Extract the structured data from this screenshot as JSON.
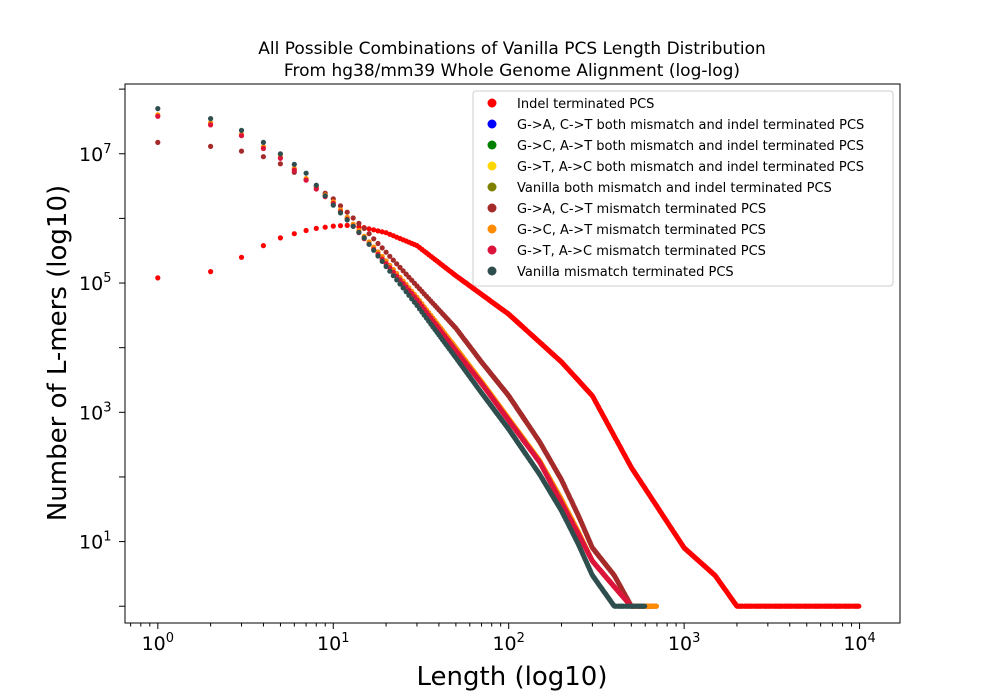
{
  "chart_data": {
    "type": "scatter",
    "title_lines": [
      "All Possible Combinations of Vanilla PCS Length Distribution",
      "From hg38/mm39 Whole Genome Alignment (log-log)"
    ],
    "xlabel": "Length (log10)",
    "ylabel": "Number of L-mers (log10)",
    "x_scale": "log",
    "y_scale": "log",
    "xlim": [
      0.65,
      17000
    ],
    "ylim": [
      0.55,
      120000000
    ],
    "x_ticks": [
      {
        "value": 1,
        "base": "10",
        "exp": "0"
      },
      {
        "value": 10,
        "base": "10",
        "exp": "1"
      },
      {
        "value": 100,
        "base": "10",
        "exp": "2"
      },
      {
        "value": 1000,
        "base": "10",
        "exp": "3"
      },
      {
        "value": 10000,
        "base": "10",
        "exp": "4"
      }
    ],
    "y_ticks": [
      {
        "value": 10,
        "base": "10",
        "exp": "1"
      },
      {
        "value": 1000,
        "base": "10",
        "exp": "3"
      },
      {
        "value": 100000,
        "base": "10",
        "exp": "5"
      },
      {
        "value": 10000000,
        "base": "10",
        "exp": "7"
      }
    ],
    "grid": false,
    "legend_position": "top-right",
    "series": [
      {
        "name": "Indel terminated PCS",
        "color": "#ff0000",
        "points": [
          [
            1,
            120000
          ],
          [
            2,
            150000
          ],
          [
            3,
            250000
          ],
          [
            4,
            380000
          ],
          [
            5,
            500000
          ],
          [
            6,
            580000
          ],
          [
            7,
            650000
          ],
          [
            8,
            700000
          ],
          [
            10,
            760000
          ],
          [
            12,
            780000
          ],
          [
            15,
            720000
          ],
          [
            20,
            600000
          ],
          [
            30,
            380000
          ],
          [
            50,
            130000
          ],
          [
            100,
            33000
          ],
          [
            200,
            6000
          ],
          [
            300,
            1800
          ],
          [
            500,
            140
          ],
          [
            700,
            35
          ],
          [
            1000,
            8
          ],
          [
            1500,
            3
          ],
          [
            2000,
            1
          ],
          [
            3000,
            1
          ],
          [
            5000,
            1
          ],
          [
            7000,
            1
          ],
          [
            10000,
            1
          ]
        ]
      },
      {
        "name": "G->A, C->T both mismatch and indel terminated PCS",
        "color": "#0000ff",
        "points": []
      },
      {
        "name": "G->C, A->T both mismatch and indel terminated PCS",
        "color": "#008000",
        "points": []
      },
      {
        "name": "G->T, A->C both mismatch and indel terminated PCS",
        "color": "#ffd700",
        "points": []
      },
      {
        "name": "Vanilla both mismatch and indel terminated PCS",
        "color": "#808000",
        "points": []
      },
      {
        "name": "G->A, C->T mismatch terminated PCS",
        "color": "#a52a2a",
        "points": [
          [
            1,
            15000000
          ],
          [
            2,
            13000000
          ],
          [
            3,
            11000000
          ],
          [
            4,
            9000000
          ],
          [
            5,
            7000000
          ],
          [
            7,
            4000000
          ],
          [
            10,
            2000000
          ],
          [
            15,
            700000
          ],
          [
            20,
            300000
          ],
          [
            30,
            90000
          ],
          [
            50,
            20000
          ],
          [
            70,
            6000
          ],
          [
            100,
            1800
          ],
          [
            150,
            350
          ],
          [
            200,
            90
          ],
          [
            250,
            25
          ],
          [
            300,
            8
          ],
          [
            400,
            3
          ],
          [
            500,
            1
          ],
          [
            700,
            1
          ]
        ]
      },
      {
        "name": "G->C, A->T mismatch terminated PCS",
        "color": "#ff8c00",
        "points": [
          [
            1,
            40000000
          ],
          [
            2,
            30000000
          ],
          [
            3,
            20000000
          ],
          [
            5,
            9000000
          ],
          [
            10,
            1800000
          ],
          [
            20,
            220000
          ],
          [
            30,
            60000
          ],
          [
            50,
            10000
          ],
          [
            70,
            3000
          ],
          [
            100,
            800
          ],
          [
            150,
            180
          ],
          [
            200,
            45
          ],
          [
            250,
            14
          ],
          [
            300,
            5
          ],
          [
            400,
            2
          ],
          [
            500,
            1
          ],
          [
            700,
            1
          ]
        ]
      },
      {
        "name": "G->T, A->C mismatch terminated PCS",
        "color": "#dc143c",
        "points": [
          [
            1,
            38000000
          ],
          [
            2,
            28000000
          ],
          [
            3,
            19000000
          ],
          [
            5,
            8500000
          ],
          [
            10,
            1700000
          ],
          [
            20,
            200000
          ],
          [
            30,
            55000
          ],
          [
            50,
            9000
          ],
          [
            70,
            2800
          ],
          [
            100,
            750
          ],
          [
            150,
            170
          ],
          [
            200,
            40
          ],
          [
            250,
            13
          ],
          [
            300,
            5
          ],
          [
            400,
            2
          ],
          [
            500,
            1
          ]
        ]
      },
      {
        "name": "Vanilla mismatch terminated PCS",
        "color": "#2f4f4f",
        "points": [
          [
            1,
            50000000
          ],
          [
            2,
            35000000
          ],
          [
            3,
            23000000
          ],
          [
            4,
            15000000
          ],
          [
            5,
            10000000
          ],
          [
            7,
            5000000
          ],
          [
            10,
            1600000
          ],
          [
            15,
            500000
          ],
          [
            20,
            180000
          ],
          [
            30,
            45000
          ],
          [
            50,
            7000
          ],
          [
            70,
            2000
          ],
          [
            100,
            550
          ],
          [
            150,
            110
          ],
          [
            200,
            30
          ],
          [
            250,
            9
          ],
          [
            300,
            3
          ],
          [
            400,
            1
          ],
          [
            600,
            1
          ]
        ]
      }
    ]
  }
}
